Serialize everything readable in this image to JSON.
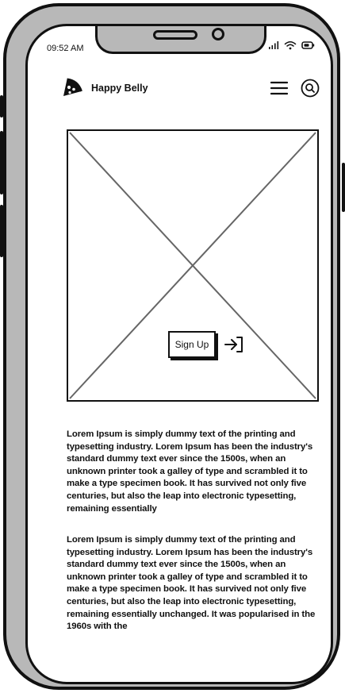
{
  "status_bar": {
    "time": "09:52 AM"
  },
  "header": {
    "brand_name": "Happy Belly"
  },
  "icons": {
    "logo": "pizza-slice-icon",
    "menu": "hamburger-menu-icon",
    "search": "search-icon",
    "login": "login-arrow-icon",
    "signal": "signal-icon",
    "wifi": "wifi-icon",
    "battery": "battery-icon"
  },
  "hero": {
    "signup_label": "Sign Up"
  },
  "content": {
    "paragraph_1": "Lorem Ipsum is simply dummy text of the printing and typesetting industry. Lorem Ipsum has been the industry's standard dummy text ever since the 1500s, when an unknown printer took a galley of type and scrambled it to make a type specimen book. It has survived not only five centuries, but also the leap into electronic typesetting, remaining essentially",
    "paragraph_2": "Lorem Ipsum is simply dummy text of the printing and typesetting industry. Lorem Ipsum has been the industry's standard dummy text ever since the 1500s, when an unknown printer took a galley of type and scrambled it to make a type specimen book. It has survived not only five centuries, but also the leap into electronic typesetting, remaining essentially unchanged. It was popularised in the 1960s with the"
  }
}
